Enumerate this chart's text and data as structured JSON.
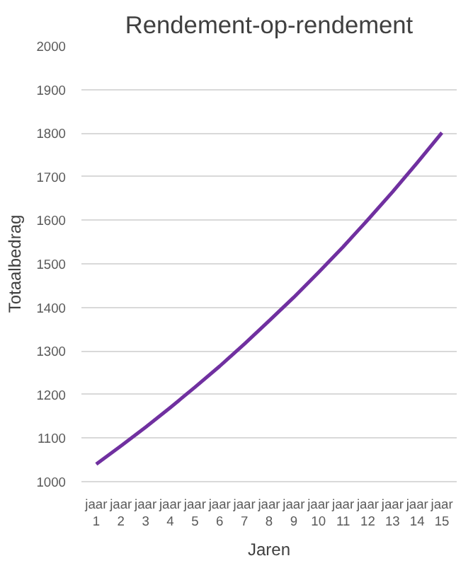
{
  "chart_data": {
    "type": "line",
    "title": "Rendement-op-rendement",
    "xlabel": "Jaren",
    "ylabel": "Totaalbedrag",
    "categories": [
      "jaar 1",
      "jaar 2",
      "jaar 3",
      "jaar 4",
      "jaar 5",
      "jaar 6",
      "jaar 7",
      "jaar 8",
      "jaar 9",
      "jaar 10",
      "jaar 11",
      "jaar 12",
      "jaar 13",
      "jaar 14",
      "jaar 15"
    ],
    "series": [
      {
        "color": "#7030a0",
        "values": [
          1040,
          1082,
          1125,
          1170,
          1217,
          1265,
          1316,
          1369,
          1423,
          1480,
          1539,
          1601,
          1665,
          1732,
          1801
        ]
      }
    ],
    "ylim": [
      1000,
      2000
    ],
    "yticks": [
      1000,
      1100,
      1200,
      1300,
      1400,
      1500,
      1600,
      1700,
      1800,
      1900,
      2000
    ],
    "grid": "y",
    "marker": "none",
    "line_style": "solid"
  }
}
